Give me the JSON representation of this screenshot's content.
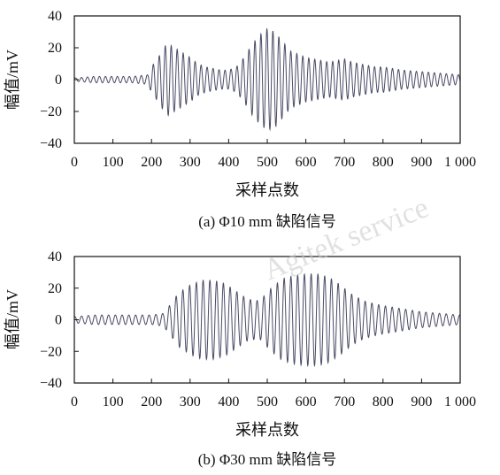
{
  "watermark": "Agitek service",
  "chart_data": [
    {
      "type": "line",
      "caption": "(a) Φ10 mm 缺陷信号",
      "xlabel": "采样点数",
      "ylabel": "幅值/mV",
      "xlim": [
        0,
        1000
      ],
      "ylim": [
        -40,
        40
      ],
      "xticks": [
        0,
        100,
        200,
        300,
        400,
        500,
        600,
        700,
        800,
        900,
        1000
      ],
      "xtick_labels": [
        "0",
        "100",
        "200",
        "300",
        "400",
        "500",
        "600",
        "700",
        "800",
        "900",
        "1 000"
      ],
      "yticks": [
        40,
        20,
        0,
        -20,
        -40
      ],
      "ytick_labels": [
        "40",
        "20",
        "0",
        "−20",
        "−40"
      ],
      "grid": false,
      "line_color": "#4a4a66",
      "series": [
        {
          "x": [
            0,
            50,
            100,
            150,
            190,
            200,
            220,
            240,
            260,
            280,
            300,
            320,
            340,
            360,
            380,
            400,
            420,
            440,
            460,
            480,
            500,
            510,
            520,
            540,
            560,
            580,
            600,
            620,
            640,
            660,
            680,
            700,
            720,
            740,
            760,
            780,
            800,
            850,
            900,
            950,
            1000
          ],
          "y": [
            1,
            2,
            2,
            2,
            3,
            8,
            15,
            23,
            20,
            17,
            14,
            10,
            8,
            7,
            6,
            6,
            8,
            14,
            22,
            28,
            32,
            31,
            30,
            24,
            18,
            16,
            14,
            13,
            12,
            11,
            12,
            13,
            11,
            10,
            9,
            8,
            8,
            6,
            5,
            4,
            3
          ]
        }
      ]
    },
    {
      "type": "line",
      "caption": "(b) Φ30 mm 缺陷信号",
      "xlabel": "采样点数",
      "ylabel": "幅值/mV",
      "xlim": [
        0,
        1000
      ],
      "ylim": [
        -40,
        40
      ],
      "xticks": [
        0,
        100,
        200,
        300,
        400,
        500,
        600,
        700,
        800,
        900,
        1000
      ],
      "xtick_labels": [
        "0",
        "100",
        "200",
        "300",
        "400",
        "500",
        "600",
        "700",
        "800",
        "900",
        "1 000"
      ],
      "yticks": [
        40,
        20,
        0,
        -20,
        -40
      ],
      "ytick_labels": [
        "40",
        "20",
        "0",
        "−20",
        "−40"
      ],
      "grid": false,
      "line_color": "#4a4a66",
      "series": [
        {
          "x": [
            0,
            50,
            100,
            150,
            200,
            230,
            250,
            270,
            300,
            330,
            360,
            390,
            420,
            450,
            480,
            510,
            540,
            570,
            600,
            630,
            660,
            690,
            720,
            750,
            780,
            800,
            850,
            900,
            950,
            1000
          ],
          "y": [
            2,
            3,
            3,
            3,
            3,
            4,
            10,
            17,
            22,
            25,
            25,
            23,
            18,
            13,
            12,
            20,
            26,
            28,
            29,
            29,
            27,
            22,
            16,
            12,
            10,
            9,
            7,
            5,
            4,
            3
          ]
        }
      ]
    }
  ]
}
